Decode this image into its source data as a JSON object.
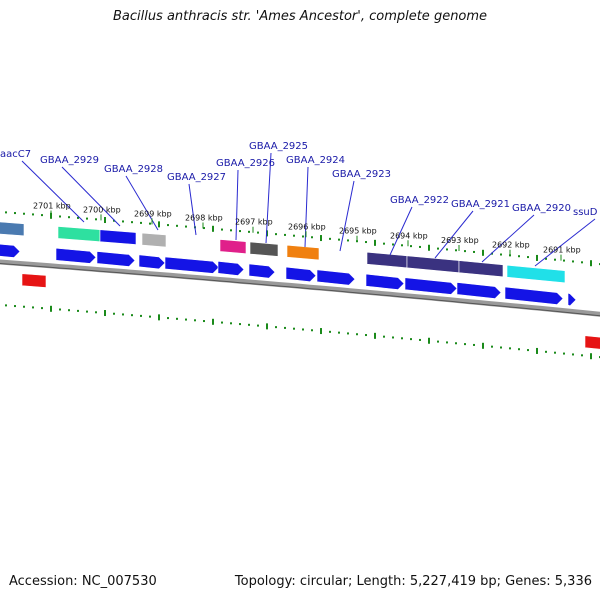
{
  "title": "Bacillus anthracis str. 'Ames Ancestor', complete genome",
  "footer": {
    "accession": "Accession: NC_007530",
    "summary": "Topology: circular; Length: 5,227,419 bp; Genes: 5,336"
  },
  "colors": {
    "cds": "#1414e6",
    "backbone": "#808080",
    "tick": "#1a8a1a",
    "label_line": "#2a2ad0",
    "label_text": "#1a1aa8"
  },
  "scale_ticks": [
    "2701 kbp",
    "2700 kbp",
    "2699 kbp",
    "2698 kbp",
    "2697 kbp",
    "2696 kbp",
    "2695 kbp",
    "2694 kbp",
    "2693 kbp",
    "2692 kbp",
    "2691 kbp"
  ],
  "gene_labels": [
    "aacC7",
    "GBAA_2929",
    "GBAA_2928",
    "GBAA_2927",
    "GBAA_2926",
    "GBAA_2925",
    "GBAA_2924",
    "GBAA_2923",
    "GBAA_2922",
    "GBAA_2921",
    "GBAA_2920",
    "ssuD"
  ],
  "feature_colors": [
    "#4a7ab0",
    "#2ee0a0",
    "#1414e6",
    "#b0b0b0",
    "#e0208a",
    "#555555",
    "#f08010",
    "#3a3280",
    "#3a3280",
    "#3a3280",
    "#20e0e8"
  ]
}
